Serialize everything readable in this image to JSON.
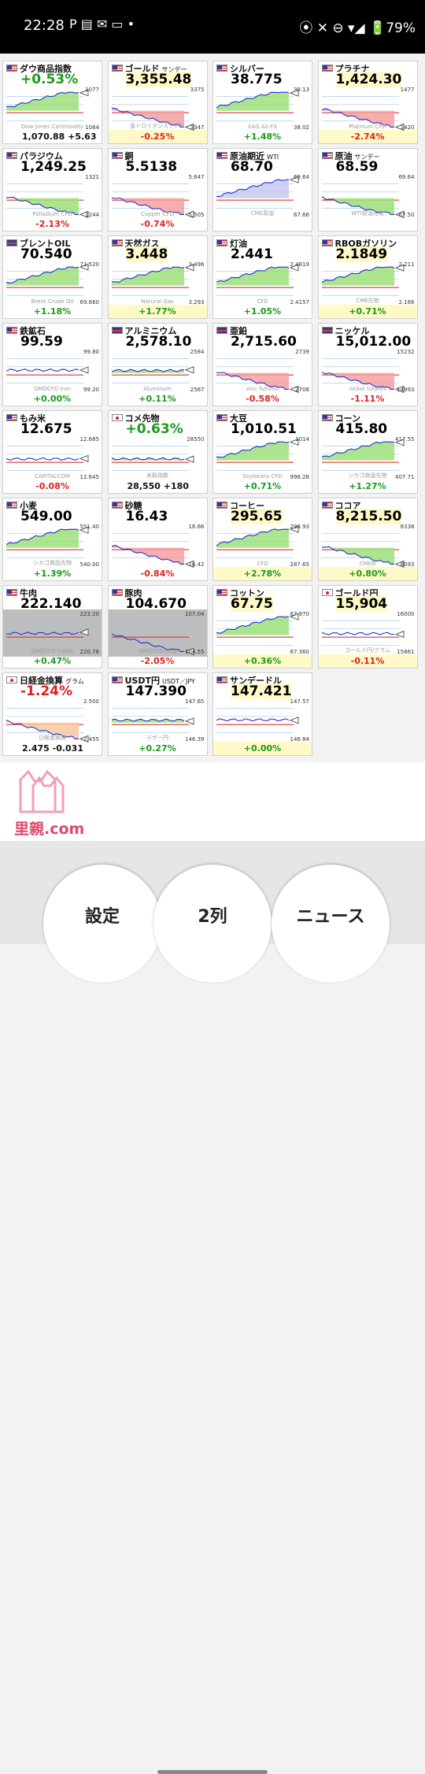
{
  "status_bar": {
    "time": "22:28",
    "icons": "P ▤ ✉ ▭ •",
    "right": "⦿ ✕ ⊖ ▾◢ 🔋79%"
  },
  "tiles": [
    {
      "name": "ダウ商品指数",
      "sub": "",
      "flag": "us",
      "price": "+0.53%",
      "pcls": "green",
      "chg": "1,070.88 +5.63",
      "ccls": "black",
      "align": "left",
      "hi": "1077",
      "lo": "1064",
      "wm": "Dow Jones Commodity",
      "trend": "up",
      "base": "green"
    },
    {
      "name": "ゴールド",
      "sub": "サンデー",
      "flag": "us",
      "price": "3,355.48",
      "pcls": "",
      "yel": true,
      "chg": "-0.25%",
      "ccls": "red",
      "align": "center",
      "hi": "3375",
      "lo": "3347",
      "wm": "金トロイオンス / ドル",
      "trend": "down",
      "base": "red"
    },
    {
      "name": "シルバー",
      "sub": "",
      "flag": "us",
      "price": "38.775",
      "pcls": "",
      "yel": false,
      "chg": "+1.48%",
      "ccls": "green",
      "align": "center",
      "hi": "39.13",
      "lo": "38.02",
      "wm": "XAG A0-FX",
      "trend": "up",
      "base": "green"
    },
    {
      "name": "プラチナ",
      "sub": "",
      "flag": "us",
      "price": "1,424.30",
      "pcls": "",
      "yel": true,
      "chg": "-2.74%",
      "ccls": "red",
      "align": "center",
      "hi": "1477",
      "lo": "1420",
      "wm": "Platinum CFD",
      "trend": "down",
      "base": "red"
    },
    {
      "name": "パラジウム",
      "sub": "",
      "flag": "us",
      "price": "1,249.25",
      "pcls": "",
      "yel": false,
      "chg": "-2.13%",
      "ccls": "red",
      "align": "center",
      "hi": "1321",
      "lo": "1244",
      "wm": "Palladium CFD",
      "trend": "down",
      "base": "green"
    },
    {
      "name": "銅",
      "sub": "",
      "flag": "us",
      "price": "5.5138",
      "pcls": "",
      "yel": false,
      "chg": "-0.74%",
      "ccls": "red",
      "align": "center",
      "hi": "5.647",
      "lo": "5.505",
      "wm": "Copper CFD",
      "trend": "down",
      "base": "red"
    },
    {
      "name": "原油期近",
      "sub": "WTI",
      "flag": "us",
      "price": "68.70",
      "pcls": "",
      "yel": false,
      "chg": "",
      "ccls": "black",
      "align": "center",
      "hi": "69.64",
      "lo": "67.66",
      "wm": "CME原油",
      "trend": "up",
      "base": "blue"
    },
    {
      "name": "原油",
      "sub": "サンデー",
      "flag": "us",
      "price": "68.59",
      "pcls": "",
      "yel": false,
      "chg": "",
      "ccls": "black",
      "align": "center",
      "hi": "69.64",
      "lo": "67.50",
      "wm": "WTI原油先物",
      "trend": "down",
      "base": "green"
    },
    {
      "name": "ブレントOIL",
      "sub": "",
      "flag": "uk",
      "price": "70.540",
      "pcls": "",
      "yel": false,
      "chg": "+1.18%",
      "ccls": "green",
      "align": "center",
      "hi": "71.520",
      "lo": "69.660",
      "wm": "Brent Crude Oil",
      "trend": "up",
      "base": "green"
    },
    {
      "name": "天然ガス",
      "sub": "",
      "flag": "us",
      "price": "3.448",
      "pcls": "",
      "yel": true,
      "chg": "+1.77%",
      "ccls": "green",
      "align": "center",
      "hi": "3.496",
      "lo": "3.293",
      "wm": "Natural Gas",
      "trend": "up",
      "base": "green"
    },
    {
      "name": "灯油",
      "sub": "",
      "flag": "us",
      "price": "2.441",
      "pcls": "",
      "yel": false,
      "chg": "+1.05%",
      "ccls": "green",
      "align": "center",
      "hi": "2.4819",
      "lo": "2.4157",
      "wm": "CFD",
      "trend": "up",
      "base": "green"
    },
    {
      "name": "RBOBガソリン",
      "sub": "",
      "flag": "us",
      "price": "2.1849",
      "pcls": "",
      "yel": true,
      "chg": "+0.71%",
      "ccls": "green",
      "align": "center",
      "hi": "2.211",
      "lo": "2.166",
      "wm": "CME先物",
      "trend": "up",
      "base": "green"
    },
    {
      "name": "鉄鉱石",
      "sub": "",
      "flag": "us",
      "price": "99.59",
      "pcls": "",
      "yel": false,
      "chg": "+0.00%",
      "ccls": "green",
      "align": "center",
      "hi": "99.80",
      "lo": "99.20",
      "wm": "GMOCFD Iron",
      "trend": "flat",
      "base": "none"
    },
    {
      "name": "アルミニウム",
      "sub": "",
      "flag": "uk",
      "price": "2,578.10",
      "pcls": "",
      "yel": false,
      "chg": "+0.11%",
      "ccls": "green",
      "align": "center",
      "hi": "2584",
      "lo": "2567",
      "wm": "Aluminum",
      "trend": "flat",
      "base": "green"
    },
    {
      "name": "亜鉛",
      "sub": "",
      "flag": "uk",
      "price": "2,715.60",
      "pcls": "",
      "yel": false,
      "chg": "-0.58%",
      "ccls": "red",
      "align": "center",
      "hi": "2739",
      "lo": "2708",
      "wm": "zinc futures",
      "trend": "down",
      "base": "red"
    },
    {
      "name": "ニッケル",
      "sub": "",
      "flag": "uk",
      "price": "15,012.00",
      "pcls": "",
      "yel": false,
      "chg": "-1.11%",
      "ccls": "red",
      "align": "center",
      "hi": "15232",
      "lo": "14993",
      "wm": "nickel futures",
      "trend": "down",
      "base": "red"
    },
    {
      "name": "もみ米",
      "sub": "",
      "flag": "us",
      "price": "12.675",
      "pcls": "",
      "yel": false,
      "chg": "-0.08%",
      "ccls": "red",
      "align": "center",
      "hi": "12.685",
      "lo": "12.645",
      "wm": "CAPITALCOM",
      "trend": "flat",
      "base": "none"
    },
    {
      "name": "コメ先物",
      "sub": "",
      "flag": "jp",
      "price": "+0.63%",
      "pcls": "green",
      "chg": "28,550 +180",
      "ccls": "black",
      "align": "left",
      "hi": "28550",
      "lo": "",
      "wm": "米穀指数",
      "trend": "flat",
      "base": "green"
    },
    {
      "name": "大豆",
      "sub": "",
      "flag": "us",
      "price": "1,010.51",
      "pcls": "",
      "yel": false,
      "chg": "+0.71%",
      "ccls": "green",
      "align": "center",
      "hi": "1014",
      "lo": "998.28",
      "wm": "Soybeans CFD",
      "trend": "up",
      "base": "green"
    },
    {
      "name": "コーン",
      "sub": "",
      "flag": "us",
      "price": "415.80",
      "pcls": "",
      "yel": false,
      "chg": "+1.27%",
      "ccls": "green",
      "align": "center",
      "hi": "417.55",
      "lo": "407.71",
      "wm": "シカゴ商品先物",
      "trend": "up",
      "base": "green"
    },
    {
      "name": "小麦",
      "sub": "",
      "flag": "us",
      "price": "549.00",
      "pcls": "",
      "yel": false,
      "chg": "+1.39%",
      "ccls": "green",
      "align": "center",
      "hi": "551.40",
      "lo": "540.00",
      "wm": "シカゴ商品先物",
      "trend": "up",
      "base": "green"
    },
    {
      "name": "砂糖",
      "sub": "",
      "flag": "us",
      "price": "16.43",
      "pcls": "",
      "yel": false,
      "chg": "-0.84%",
      "ccls": "red",
      "align": "center",
      "hi": "16.66",
      "lo": "16.42",
      "wm": "",
      "trend": "down",
      "base": "red"
    },
    {
      "name": "コーヒー",
      "sub": "",
      "flag": "us",
      "price": "295.65",
      "pcls": "",
      "yel": true,
      "chg": "+2.78%",
      "ccls": "green",
      "align": "center",
      "hi": "298.93",
      "lo": "287.65",
      "wm": "CFD",
      "trend": "up",
      "base": "green"
    },
    {
      "name": "ココア",
      "sub": "",
      "flag": "us",
      "price": "8,215.50",
      "pcls": "",
      "yel": true,
      "chg": "+0.80%",
      "ccls": "green",
      "align": "center",
      "hi": "8338",
      "lo": "8093",
      "wm": "CMEN",
      "trend": "down",
      "base": "green"
    },
    {
      "name": "牛肉",
      "sub": "",
      "flag": "us",
      "price": "222.140",
      "pcls": "",
      "yel": false,
      "chg": "+0.47%",
      "ccls": "green",
      "align": "center",
      "hi": "223.20",
      "lo": "220.78",
      "wm": "GMOCFD Cattle",
      "trend": "flat",
      "base": "gray"
    },
    {
      "name": "豚肉",
      "sub": "",
      "flag": "us",
      "price": "104.670",
      "pcls": "",
      "yel": false,
      "chg": "-2.05%",
      "ccls": "red",
      "align": "center",
      "hi": "107.04",
      "lo": "104.55",
      "wm": "GMOCFD Hog",
      "trend": "down",
      "base": "gray"
    },
    {
      "name": "コットン",
      "sub": "",
      "flag": "us",
      "price": "67.75",
      "pcls": "",
      "yel": true,
      "chg": "+0.36%",
      "ccls": "green",
      "align": "center",
      "hi": "67.970",
      "lo": "67.360",
      "wm": "",
      "trend": "up",
      "base": "green"
    },
    {
      "name": "ゴールド円",
      "sub": "",
      "flag": "jp",
      "price": "15,904",
      "pcls": "",
      "yel": true,
      "chg": "-0.11%",
      "ccls": "red",
      "align": "center",
      "hi": "16000",
      "lo": "15861",
      "wm": "ゴールド円/グラム",
      "trend": "flat",
      "base": "none"
    },
    {
      "name": "日経金換算",
      "sub": "グラム",
      "flag": "jp",
      "price": "-1.24%",
      "pcls": "red",
      "chg": "2.475 -0.031",
      "ccls": "black",
      "align": "left",
      "hi": "2.500",
      "lo": "2.455",
      "wm": "日経金換算",
      "trend": "down",
      "base": "orange"
    },
    {
      "name": "USDT円",
      "sub": "USDT／JPY",
      "flag": "us",
      "price": "147.390",
      "pcls": "",
      "yel": false,
      "chg": "+0.27%",
      "ccls": "green",
      "align": "center",
      "hi": "147.65",
      "lo": "146.39",
      "wm": "テザー円",
      "trend": "flat",
      "base": "green"
    },
    {
      "name": "サンデードル",
      "sub": "",
      "flag": "us",
      "price": "147.421",
      "pcls": "",
      "yel": true,
      "chg": "+0.00%",
      "ccls": "green",
      "align": "center",
      "hi": "147.57",
      "lo": "146.84",
      "wm": "",
      "trend": "flat",
      "base": "none"
    }
  ],
  "ad": {
    "text": "里親.com"
  },
  "nav": {
    "settings": "設定",
    "columns": "2列",
    "news": "ニュース"
  },
  "colors": {
    "green": "#1a9a1a",
    "red": "#e02020",
    "chart_line": "#2233cc"
  }
}
